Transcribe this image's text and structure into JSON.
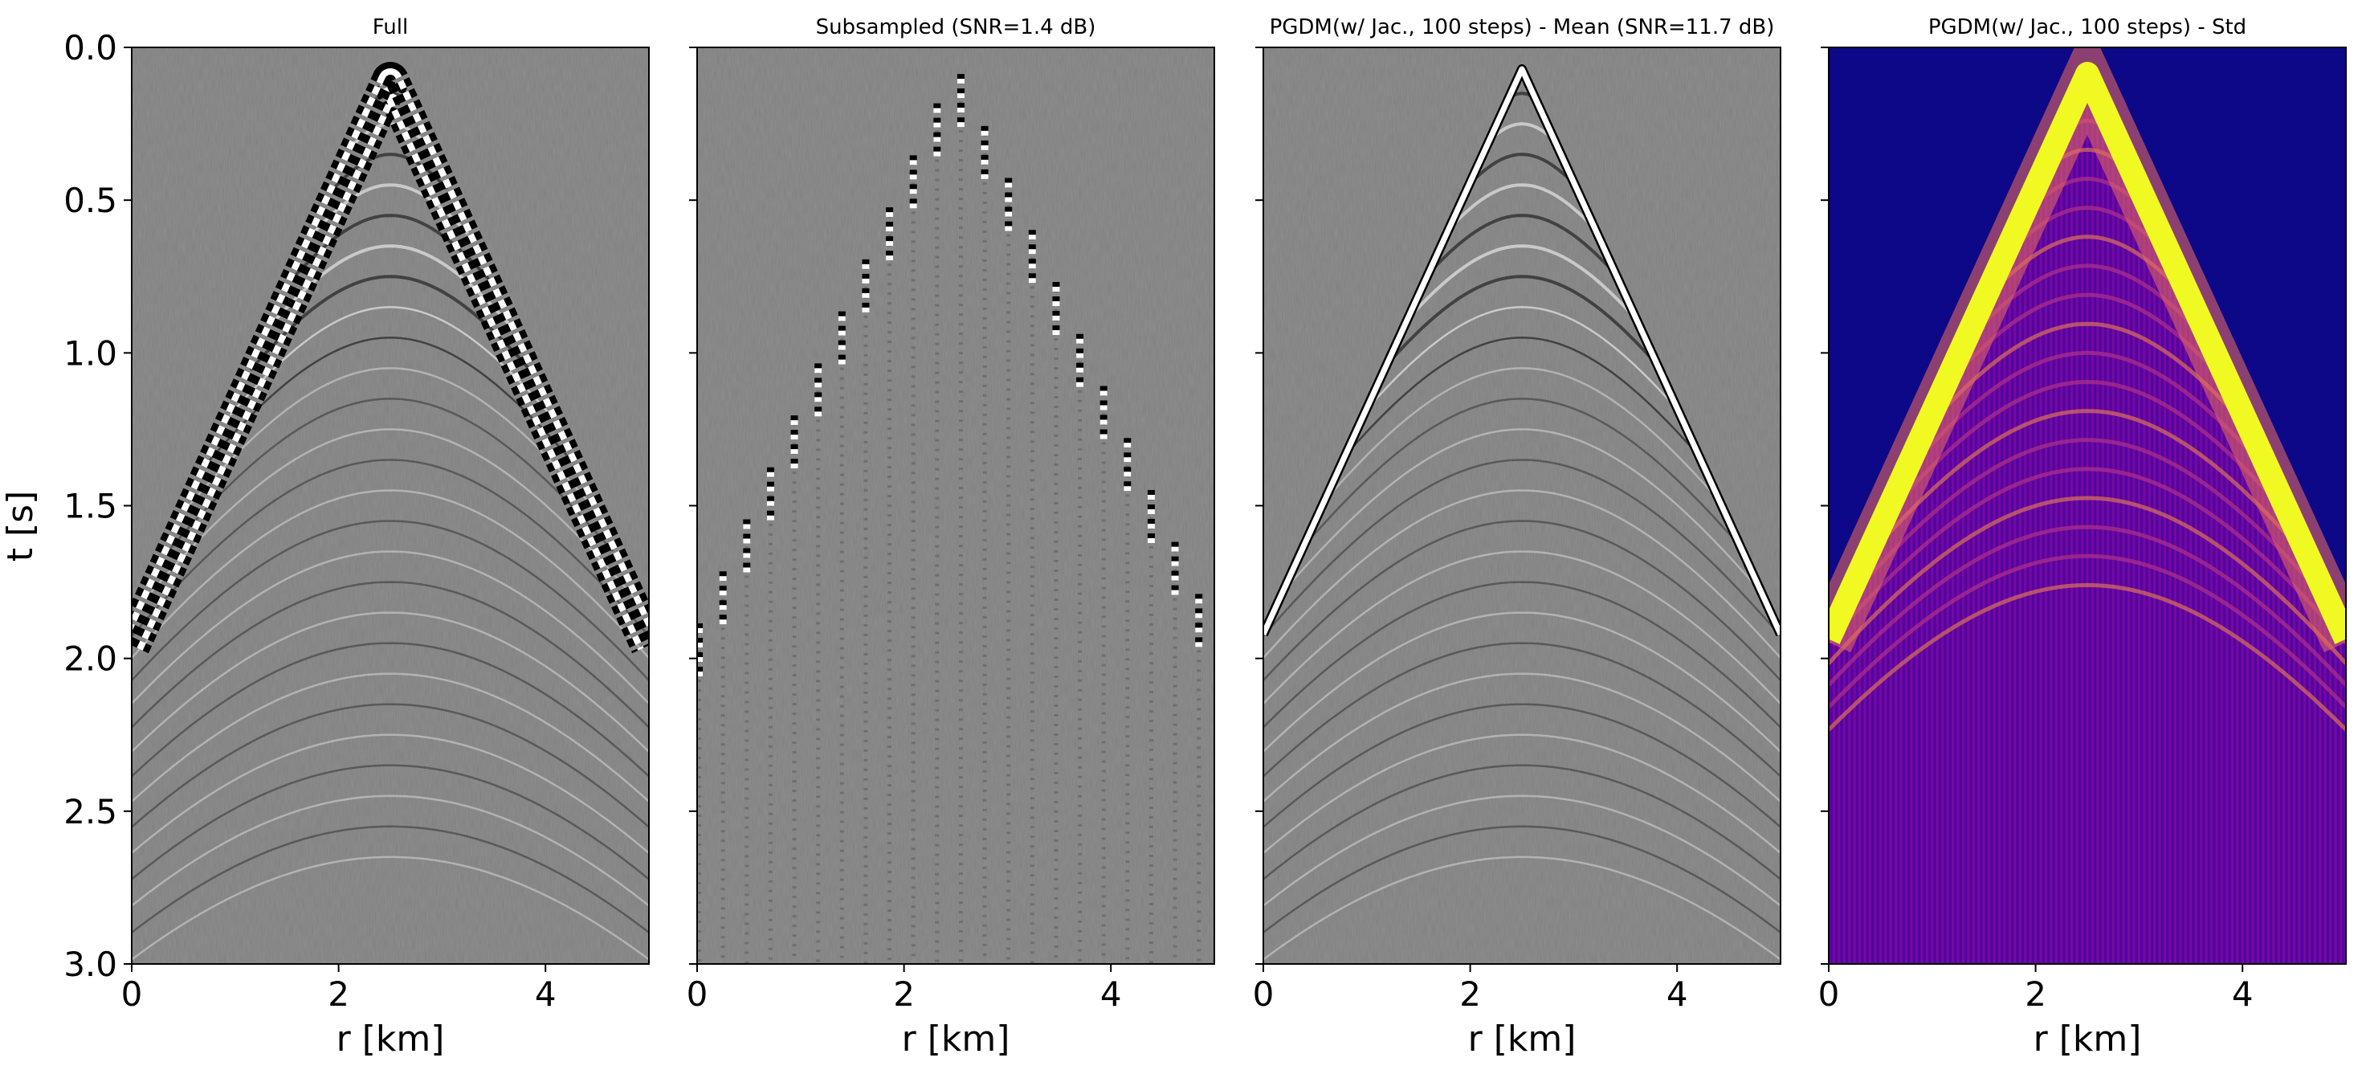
{
  "figure": {
    "ylabel": "t [s]",
    "xlabel": "r [km]"
  },
  "chart_data": [
    {
      "type": "heatmap",
      "title": "Full",
      "colormap": "gray",
      "xlabel": "r [km]",
      "ylabel": "t [s]",
      "xlim": [
        0,
        5
      ],
      "ylim": [
        3.0,
        0.0
      ],
      "xticks": [
        0,
        2,
        4
      ],
      "yticks": [
        0.0,
        0.5,
        1.0,
        1.5,
        2.0,
        2.5,
        3.0
      ],
      "apex": {
        "r": 2.5,
        "t": 0.05
      },
      "edge_arrival_t": 1.9,
      "trace_spacing_km": 0.03
    },
    {
      "type": "heatmap",
      "title": "Subsampled (SNR=1.4 dB)",
      "colormap": "gray",
      "xlabel": "r [km]",
      "xlim": [
        0,
        5
      ],
      "ylim": [
        3.0,
        0.0
      ],
      "xticks": [
        0,
        2,
        4
      ],
      "apex": {
        "r": 2.5,
        "t": 0.05
      },
      "edge_arrival_t": 1.9,
      "trace_spacing_km": 0.23
    },
    {
      "type": "heatmap",
      "title": "PGDM(w/ Jac., 100 steps) - Mean (SNR=11.7 dB)",
      "colormap": "gray",
      "xlabel": "r [km]",
      "xlim": [
        0,
        5
      ],
      "ylim": [
        3.0,
        0.0
      ],
      "xticks": [
        0,
        2,
        4
      ],
      "apex": {
        "r": 2.5,
        "t": 0.05
      },
      "edge_arrival_t": 1.9,
      "trace_spacing_km": 0.03
    },
    {
      "type": "heatmap",
      "title": "PGDM(w/ Jac., 100 steps) - Std",
      "colormap": "plasma",
      "xlabel": "r [km]",
      "xlim": [
        0,
        5
      ],
      "ylim": [
        3.0,
        0.0
      ],
      "xticks": [
        0,
        2,
        4
      ],
      "apex": {
        "r": 2.5,
        "t": 0.05
      },
      "edge_arrival_t": 1.9,
      "trace_spacing_km": 0.05
    }
  ]
}
